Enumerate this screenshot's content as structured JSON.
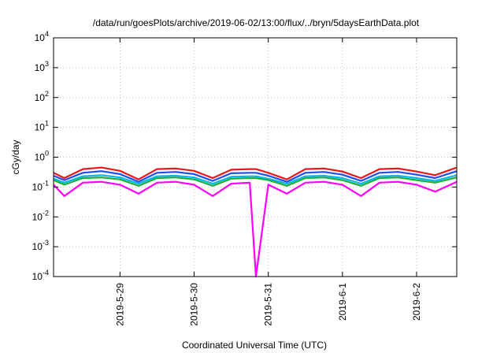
{
  "chart_data": {
    "type": "line",
    "title": "/data/run/goesPlots/archive/2019-06-02/13:00/flux/../bryn/5daysEarthData.plot",
    "xlabel": "Coordinated Universal Time (UTC)",
    "ylabel": "cGy/day",
    "y_scale": "log",
    "ylim": [
      0.0001,
      10000
    ],
    "xlim": [
      "2019-05-28 02:30",
      "2019-06-02 13:00"
    ],
    "grid": true,
    "legend": "none",
    "y_ticks": [
      {
        "base": "10",
        "exp": "-4",
        "value": 0.0001
      },
      {
        "base": "10",
        "exp": "-3",
        "value": 0.001
      },
      {
        "base": "10",
        "exp": "-2",
        "value": 0.01
      },
      {
        "base": "10",
        "exp": "-1",
        "value": 0.1
      },
      {
        "base": "10",
        "exp": "0",
        "value": 1
      },
      {
        "base": "10",
        "exp": "1",
        "value": 10
      },
      {
        "base": "10",
        "exp": "2",
        "value": 100
      },
      {
        "base": "10",
        "exp": "3",
        "value": 1000
      },
      {
        "base": "10",
        "exp": "4",
        "value": 10000
      }
    ],
    "x_ticks": [
      {
        "label": "2019-5-29",
        "value": "2019-05-29 00:00"
      },
      {
        "label": "2019-5-30",
        "value": "2019-05-30 00:00"
      },
      {
        "label": "2019-5-31",
        "value": "2019-05-31 00:00"
      },
      {
        "label": "2019-6-1",
        "value": "2019-06-01 00:00"
      },
      {
        "label": "2019-6-2",
        "value": "2019-06-02 00:00"
      }
    ],
    "x": [
      "2019-05-28 02:30",
      "2019-05-28 06:00",
      "2019-05-28 12:00",
      "2019-05-28 18:00",
      "2019-05-29 00:00",
      "2019-05-29 06:00",
      "2019-05-29 12:00",
      "2019-05-29 18:00",
      "2019-05-30 00:00",
      "2019-05-30 06:00",
      "2019-05-30 12:00",
      "2019-05-30 18:00",
      "2019-05-30 20:00",
      "2019-05-31 00:00",
      "2019-05-31 06:00",
      "2019-05-31 12:00",
      "2019-05-31 18:00",
      "2019-06-01 00:00",
      "2019-06-01 06:00",
      "2019-06-01 12:00",
      "2019-06-01 18:00",
      "2019-06-02 00:00",
      "2019-06-02 06:00",
      "2019-06-02 13:00"
    ],
    "series": [
      {
        "color": "#e8171c",
        "values": [
          0.3,
          0.2,
          0.4,
          0.45,
          0.35,
          0.18,
          0.4,
          0.42,
          0.35,
          0.2,
          0.38,
          0.4,
          0.4,
          0.3,
          0.18,
          0.4,
          0.42,
          0.33,
          0.2,
          0.4,
          0.42,
          0.33,
          0.25,
          0.45
        ]
      },
      {
        "color": "#1f4ef0",
        "values": [
          0.24,
          0.17,
          0.3,
          0.34,
          0.27,
          0.15,
          0.3,
          0.32,
          0.27,
          0.16,
          0.29,
          0.3,
          0.3,
          0.24,
          0.15,
          0.3,
          0.32,
          0.26,
          0.16,
          0.3,
          0.32,
          0.26,
          0.2,
          0.34
        ]
      },
      {
        "color": "#00b8e8",
        "values": [
          0.19,
          0.14,
          0.23,
          0.25,
          0.21,
          0.13,
          0.23,
          0.24,
          0.21,
          0.13,
          0.22,
          0.23,
          0.23,
          0.19,
          0.13,
          0.23,
          0.24,
          0.2,
          0.13,
          0.23,
          0.24,
          0.2,
          0.16,
          0.25
        ]
      },
      {
        "color": "#1fae3c",
        "values": [
          0.17,
          0.12,
          0.2,
          0.21,
          0.18,
          0.11,
          0.2,
          0.21,
          0.18,
          0.11,
          0.19,
          0.2,
          0.2,
          0.17,
          0.11,
          0.2,
          0.21,
          0.17,
          0.11,
          0.2,
          0.21,
          0.17,
          0.14,
          0.21
        ]
      },
      {
        "color": "#ff00ff",
        "values": [
          0.12,
          0.05,
          0.14,
          0.15,
          0.12,
          0.06,
          0.14,
          0.15,
          0.12,
          0.05,
          0.13,
          0.14,
          0.0001,
          0.12,
          0.06,
          0.14,
          0.15,
          0.12,
          0.05,
          0.14,
          0.15,
          0.12,
          0.07,
          0.15
        ]
      }
    ]
  }
}
